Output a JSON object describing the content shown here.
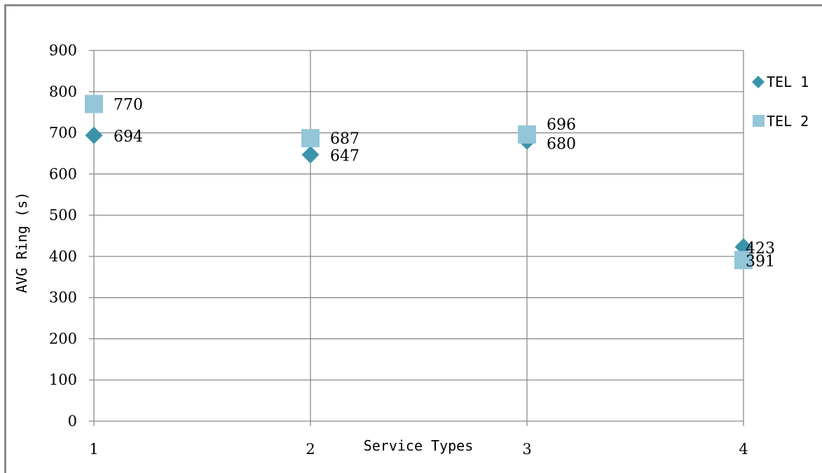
{
  "chart_data": {
    "type": "scatter",
    "x": [
      1,
      2,
      3,
      4
    ],
    "xlabel": "Service Types",
    "ylabel": "AVG Ring (s)",
    "xlim": [
      1,
      4
    ],
    "ylim": [
      0,
      900
    ],
    "x_ticks": [
      "1",
      "2",
      "3",
      "4"
    ],
    "y_ticks": [
      "0",
      "100",
      "200",
      "300",
      "400",
      "500",
      "600",
      "700",
      "800",
      "900"
    ],
    "grid": true,
    "legend_position": "right",
    "series": [
      {
        "name": "TEL 1",
        "marker": "diamond",
        "color": "#3c94aa",
        "values": [
          694,
          647,
          680,
          423
        ],
        "labels": [
          "694",
          "647",
          "680",
          "423"
        ]
      },
      {
        "name": "TEL 2",
        "marker": "square",
        "color": "#93c6d8",
        "values": [
          770,
          687,
          696,
          391
        ],
        "labels": [
          "770",
          "687",
          "696",
          "391"
        ]
      }
    ]
  }
}
